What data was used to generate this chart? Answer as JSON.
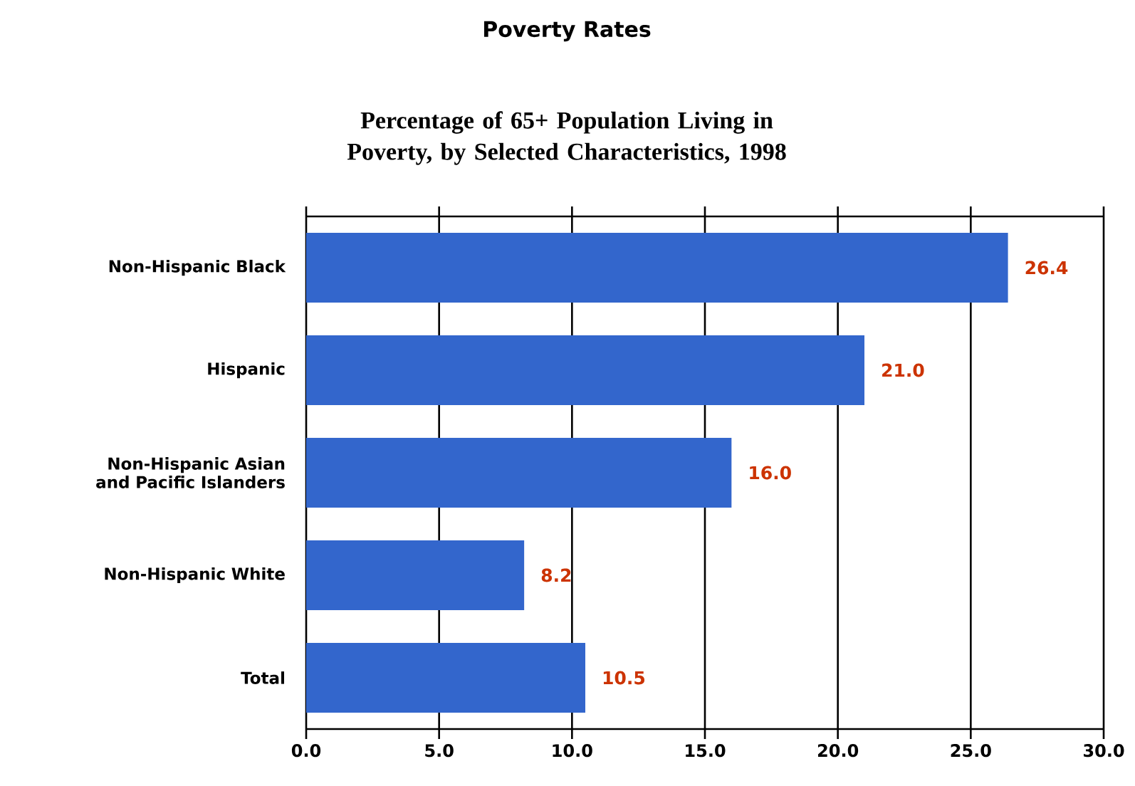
{
  "chart_data": {
    "type": "bar",
    "orientation": "horizontal",
    "title": "Poverty Rates",
    "subtitle": "Percentage of 65+ Population Living in Poverty, by Selected Characteristics, 1998",
    "categories": [
      "Non-Hispanic Black",
      "Hispanic",
      "Non-Hispanic Asian and Pacific Islanders",
      "Non-Hispanic White",
      "Total"
    ],
    "values": [
      26.4,
      21.0,
      16.0,
      8.2,
      10.5
    ],
    "value_labels": [
      "26.4",
      "21.0",
      "16.0",
      "8.2",
      "10.5"
    ],
    "color": "#3366cc",
    "xlim": [
      0,
      30
    ],
    "xticks": [
      {
        "value": 0,
        "label": "0.0"
      },
      {
        "value": 5,
        "label": "5.0"
      },
      {
        "value": 10,
        "label": "10.0"
      },
      {
        "value": 15,
        "label": "15.0"
      },
      {
        "value": 20,
        "label": "20.0"
      },
      {
        "value": 25,
        "label": "25.0"
      },
      {
        "value": 30,
        "label": "30.0"
      }
    ],
    "grid": "x"
  }
}
